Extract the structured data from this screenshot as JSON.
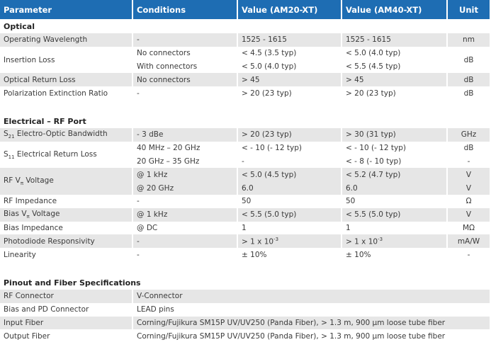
{
  "table": {
    "header": [
      "Parameter",
      "Conditions",
      "Value (AM20-XT)",
      "Value (AM40-XT)",
      "Unit"
    ],
    "sections": [
      {
        "title": "Optical",
        "rows": [
          {
            "parameter": "Operating Wavelength",
            "lines": [
              [
                "-",
                "1525 - 1615",
                "1525 - 1615",
                "nm"
              ]
            ]
          },
          {
            "parameter": "Insertion Loss",
            "lines": [
              [
                "No connectors",
                "< 4.5 (3.5 typ)",
                "< 5.0 (4.0 typ)"
              ],
              [
                "With connectors",
                "< 5.0 (4.0 typ)",
                "< 5.5 (4.5 typ)"
              ]
            ],
            "unit": "dB"
          },
          {
            "parameter": "Optical Return Loss",
            "lines": [
              [
                "No connectors",
                "> 45",
                "> 45",
                "dB"
              ]
            ]
          },
          {
            "parameter": "Polarization Extinction Ratio",
            "lines": [
              [
                "-",
                "> 20 (23 typ)",
                "> 20 (23 typ)",
                "dB"
              ]
            ]
          }
        ]
      },
      {
        "title": "Electrical – RF Port",
        "rows": [
          {
            "parameter": {
              "base": "S",
              "sub": "21",
              "rest": " Electro-Optic Bandwidth"
            },
            "lines": [
              [
                "- 3 dBe",
                "> 20 (23 typ)",
                "> 30 (31 typ)",
                "GHz"
              ]
            ]
          },
          {
            "parameter": {
              "base": "S",
              "sub": "11",
              "rest": " Electrical Return Loss"
            },
            "lines": [
              [
                "40 MHz – 20 GHz",
                "< - 10 (- 12 typ)",
                "< - 10 (- 12 typ)",
                "dB"
              ],
              [
                "20 GHz – 35 GHz",
                "-",
                "< - 8 (- 10 typ)",
                "-"
              ]
            ]
          },
          {
            "parameter": {
              "base": "RF V",
              "sub": "π",
              "rest": " Voltage"
            },
            "lines": [
              [
                "@ 1 kHz",
                "< 5.0 (4.5 typ)",
                "< 5.2 (4.7 typ)",
                "V"
              ],
              [
                "@ 20 GHz",
                "6.0",
                "6.0",
                "V"
              ]
            ]
          },
          {
            "parameter": "RF Impedance",
            "lines": [
              [
                "-",
                "50",
                "50",
                "Ω"
              ]
            ]
          },
          {
            "parameter": {
              "base": "Bias V",
              "sub": "π",
              "rest": " Voltage"
            },
            "lines": [
              [
                "@ 1 kHz",
                "< 5.5 (5.0 typ)",
                "< 5.5 (5.0 typ)",
                "V"
              ]
            ]
          },
          {
            "parameter": "Bias Impedance",
            "lines": [
              [
                "@ DC",
                "1",
                "1",
                "MΩ"
              ]
            ]
          },
          {
            "parameter": "Photodiode Responsivity",
            "lines": [
              [
                "-",
                {
                  "base": "> 1 x 10",
                  "sup": "-3"
                },
                {
                  "base": "> 1 x 10",
                  "sup": "-3"
                },
                "mA/W"
              ]
            ]
          },
          {
            "parameter": "Linearity",
            "lines": [
              [
                "-",
                "± 10%",
                "± 10%",
                "-"
              ]
            ]
          }
        ]
      },
      {
        "title": "Pinout and Fiber Specifications",
        "rows": [
          {
            "parameter": "RF Connector",
            "value": "V-Connector"
          },
          {
            "parameter": "Bias and PD Connector",
            "value": "LEAD pins"
          },
          {
            "parameter": "Input Fiber",
            "value": "Corning/Fujikura SM15P UV/UV250 (Panda Fiber), > 1.3 m, 900 µm loose tube fiber"
          },
          {
            "parameter": "Output Fiber",
            "value": "Corning/Fujikura SM15P UV/UV250 (Panda Fiber), > 1.3 m, 900 µm loose tube fiber"
          }
        ]
      }
    ]
  }
}
